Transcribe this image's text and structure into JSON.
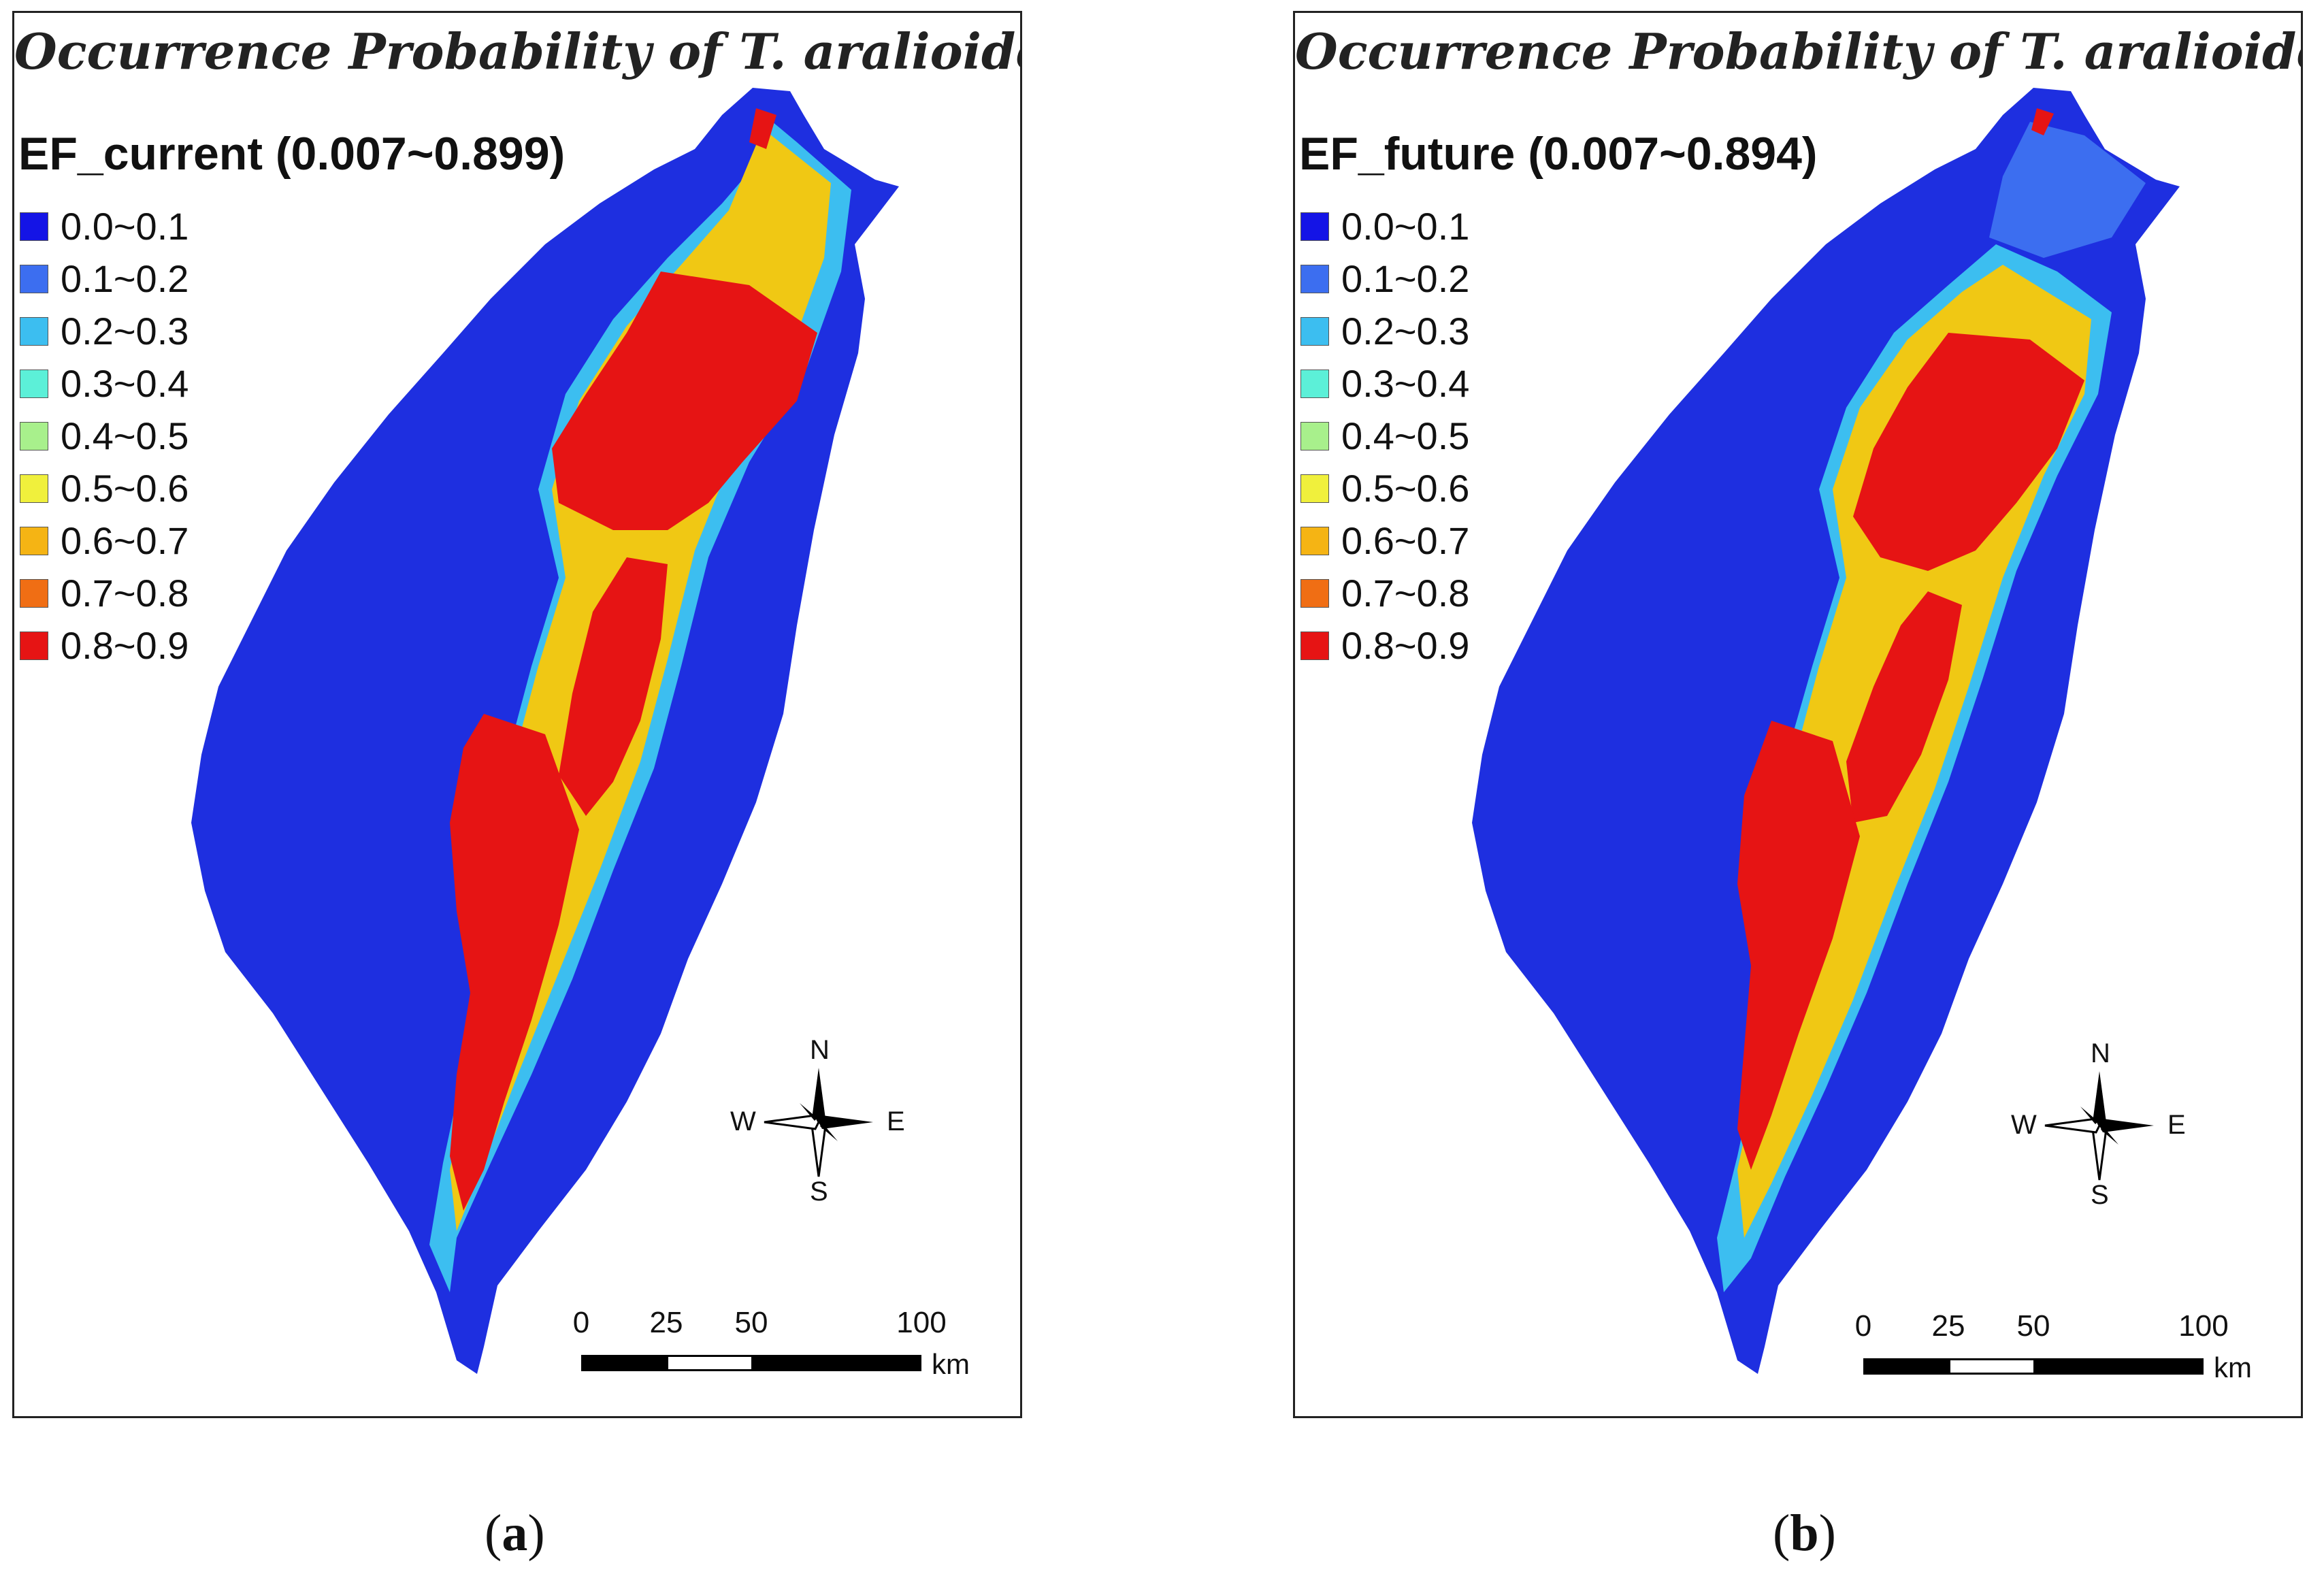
{
  "panels": [
    {
      "id": "a",
      "title": "Occurrence Probability of T. aralioides",
      "legend_title": "EF_current (0.007~0.899)",
      "caption_open": "(",
      "caption_letter": "a",
      "caption_close": ")"
    },
    {
      "id": "b",
      "title": "Occurrence Probability of T. aralioides",
      "legend_title": "EF_future (0.007~0.894)",
      "caption_open": "(",
      "caption_letter": "b",
      "caption_close": ")"
    }
  ],
  "legend_classes": [
    {
      "label": "0.0~0.1",
      "color": "#1414e6"
    },
    {
      "label": "0.1~0.2",
      "color": "#3c6ef0"
    },
    {
      "label": "0.2~0.3",
      "color": "#3cbef0"
    },
    {
      "label": "0.3~0.4",
      "color": "#5cf0d8"
    },
    {
      "label": "0.4~0.5",
      "color": "#a8f08c"
    },
    {
      "label": "0.5~0.6",
      "color": "#f0f03c"
    },
    {
      "label": "0.6~0.7",
      "color": "#f5b414"
    },
    {
      "label": "0.7~0.8",
      "color": "#f06e14"
    },
    {
      "label": "0.8~0.9",
      "color": "#e61414"
    }
  ],
  "compass": {
    "n": "N",
    "s": "S",
    "e": "E",
    "w": "W",
    "icon": "north-arrow-compass-rose"
  },
  "scalebar": {
    "ticks": [
      "0",
      "25",
      "50",
      "100"
    ],
    "unit": "km"
  },
  "colors": {
    "land": "#1e2fe0",
    "outline": "#222222",
    "high": "#e61414",
    "mid": "#f0c814",
    "low": "#3cbef0"
  }
}
